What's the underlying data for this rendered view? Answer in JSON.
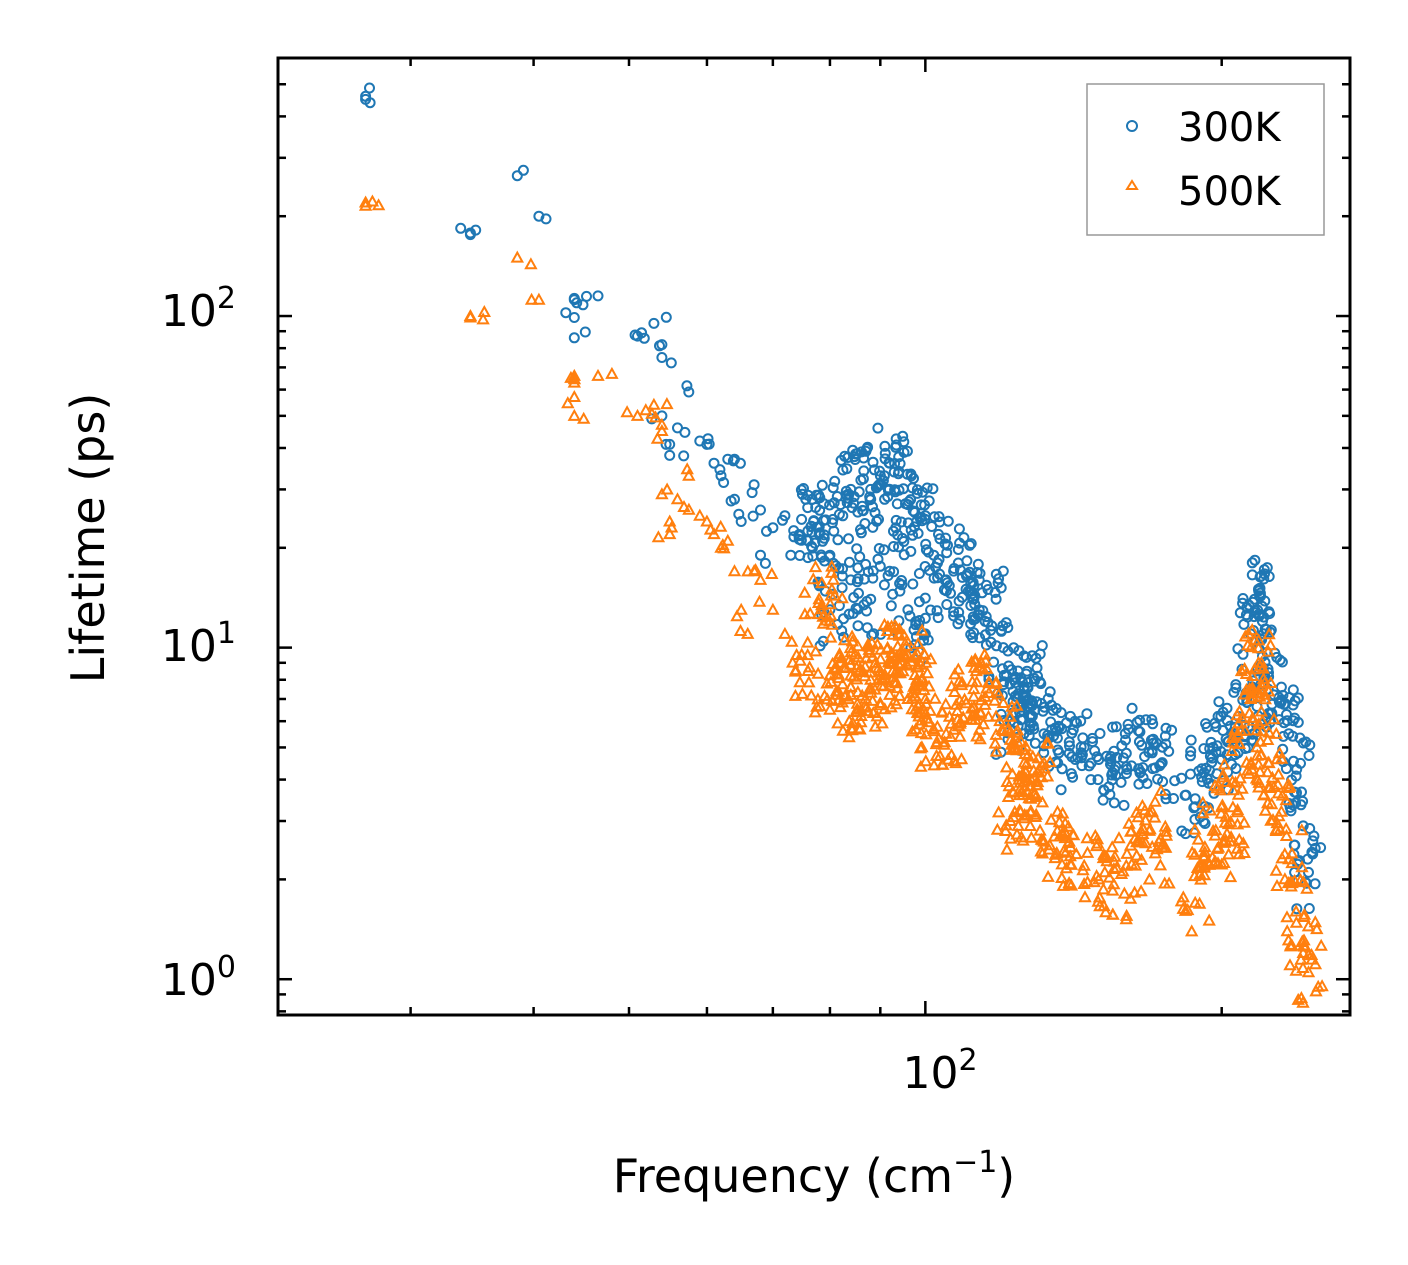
{
  "chart_data": {
    "type": "scatter",
    "x_scale": "log",
    "y_scale": "log",
    "xlim": [
      22,
      270
    ],
    "ylim": [
      0.78,
      600
    ],
    "xlabel": "Frequency (cm",
    "xlabel_sup": "−1",
    "xlabel_close": ")",
    "ylabel": "Lifetime (ps)",
    "x_tick_labels": [
      {
        "base": "10",
        "exp": "2",
        "value": 100
      }
    ],
    "y_tick_labels": [
      {
        "base": "10",
        "exp": "0",
        "value": 1
      },
      {
        "base": "10",
        "exp": "1",
        "value": 10
      },
      {
        "base": "10",
        "exp": "2",
        "value": 100
      }
    ],
    "legend_position": "top-right",
    "series": [
      {
        "name": "300K",
        "marker": "circle",
        "color": "#1f77b4",
        "anchor_points": [
          [
            27,
            450
          ],
          [
            27,
            460
          ],
          [
            34.5,
            178
          ],
          [
            34.5,
            176
          ],
          [
            38.5,
            265
          ],
          [
            40.5,
            200
          ],
          [
            44,
            112
          ],
          [
            44,
            113
          ],
          [
            44,
            99
          ],
          [
            44,
            86
          ],
          [
            46.5,
            115
          ],
          [
            51,
            87
          ],
          [
            51.5,
            89
          ],
          [
            53,
            95
          ],
          [
            54,
            82
          ],
          [
            54,
            75
          ],
          [
            54,
            50
          ],
          [
            55,
            41
          ],
          [
            55,
            38
          ],
          [
            56,
            46
          ],
          [
            57.5,
            59
          ],
          [
            59,
            42
          ],
          [
            60,
            41
          ],
          [
            61,
            36
          ],
          [
            62,
            33
          ],
          [
            63,
            37
          ],
          [
            64,
            37
          ],
          [
            64,
            28
          ],
          [
            65,
            24
          ],
          [
            67,
            31
          ],
          [
            68,
            26
          ],
          [
            68,
            19
          ],
          [
            70,
            23
          ],
          [
            72,
            25
          ],
          [
            73,
            19
          ],
          [
            75,
            29
          ],
          [
            76,
            21
          ],
          [
            77,
            24
          ],
          [
            78,
            22
          ],
          [
            80,
            19
          ],
          [
            82,
            27
          ],
          [
            84,
            30
          ],
          [
            86,
            32
          ],
          [
            88,
            28
          ],
          [
            90,
            31
          ],
          [
            92,
            36
          ],
          [
            94,
            34
          ],
          [
            96,
            27
          ],
          [
            98,
            24
          ],
          [
            100,
            25
          ],
          [
            80,
            13
          ],
          [
            84,
            16
          ],
          [
            88,
            14
          ],
          [
            92,
            17
          ],
          [
            96,
            13
          ],
          [
            100,
            11
          ],
          [
            102,
            19
          ],
          [
            105,
            16
          ],
          [
            108,
            18
          ],
          [
            110,
            15
          ],
          [
            112,
            14
          ],
          [
            115,
            12
          ],
          [
            118,
            14
          ],
          [
            120,
            10
          ],
          [
            123,
            8
          ],
          [
            126,
            7.5
          ],
          [
            130,
            8.2
          ],
          [
            122,
            6
          ],
          [
            125,
            6.8
          ],
          [
            128,
            6.2
          ],
          [
            132,
            5.5
          ],
          [
            136,
            5.6
          ],
          [
            140,
            4.8
          ],
          [
            145,
            5
          ],
          [
            150,
            4.6
          ],
          [
            155,
            4.2
          ],
          [
            160,
            4.8
          ],
          [
            165,
            5.2
          ],
          [
            170,
            4.9
          ],
          [
            174,
            4.5
          ],
          [
            188,
            3.5
          ],
          [
            192,
            4.2
          ],
          [
            196,
            5
          ],
          [
            200,
            4.6
          ],
          [
            204,
            5.8
          ],
          [
            208,
            6.2
          ],
          [
            212,
            7
          ],
          [
            214,
            11
          ],
          [
            216,
            14
          ],
          [
            218,
            15
          ],
          [
            220,
            12
          ],
          [
            223,
            7.5
          ],
          [
            226,
            7.2
          ],
          [
            230,
            7.6
          ],
          [
            234,
            5.5
          ],
          [
            238,
            4.1
          ],
          [
            242,
            2.9
          ],
          [
            245,
            2.1
          ]
        ]
      },
      {
        "name": "500K",
        "marker": "triangle",
        "color": "#ff7f0e",
        "anchor_points": [
          [
            27,
            220
          ],
          [
            27,
            215
          ],
          [
            34.5,
            100
          ],
          [
            34.5,
            99
          ],
          [
            38.5,
            150
          ],
          [
            40.5,
            112
          ],
          [
            44,
            66
          ],
          [
            44,
            63
          ],
          [
            44,
            57
          ],
          [
            44,
            50
          ],
          [
            46.5,
            66
          ],
          [
            51,
            50
          ],
          [
            52,
            52
          ],
          [
            53,
            54
          ],
          [
            54,
            47
          ],
          [
            54,
            45
          ],
          [
            54,
            29
          ],
          [
            55,
            24
          ],
          [
            55,
            22
          ],
          [
            56,
            28
          ],
          [
            57.5,
            33
          ],
          [
            59,
            25
          ],
          [
            60,
            24
          ],
          [
            61,
            22
          ],
          [
            62,
            20
          ],
          [
            63,
            21
          ],
          [
            64,
            17
          ],
          [
            65,
            13
          ],
          [
            66,
            11
          ],
          [
            67,
            17
          ],
          [
            68,
            16
          ],
          [
            70,
            13
          ],
          [
            72,
            11
          ],
          [
            74,
            9.5
          ],
          [
            76,
            8.5
          ],
          [
            78,
            14
          ],
          [
            80,
            12
          ],
          [
            82,
            9
          ],
          [
            84,
            7.2
          ],
          [
            86,
            6.5
          ],
          [
            88,
            7.5
          ],
          [
            90,
            8.5
          ],
          [
            92,
            9
          ],
          [
            94,
            11
          ],
          [
            96,
            9.5
          ],
          [
            98,
            8
          ],
          [
            100,
            7
          ],
          [
            80,
            6.5
          ],
          [
            84,
            7.6
          ],
          [
            88,
            8
          ],
          [
            92,
            7.2
          ],
          [
            96,
            7
          ],
          [
            100,
            6.3
          ],
          [
            102,
            5.6
          ],
          [
            105,
            5.5
          ],
          [
            108,
            5.8
          ],
          [
            110,
            6.8
          ],
          [
            112,
            7.5
          ],
          [
            115,
            7.1
          ],
          [
            118,
            6.2
          ],
          [
            120,
            5.6
          ],
          [
            123,
            5
          ],
          [
            126,
            4.5
          ],
          [
            130,
            4.2
          ],
          [
            122,
            3
          ],
          [
            125,
            3.2
          ],
          [
            128,
            3.5
          ],
          [
            132,
            2.6
          ],
          [
            136,
            2.4
          ],
          [
            140,
            2.6
          ],
          [
            145,
            2.2
          ],
          [
            150,
            2
          ],
          [
            155,
            1.85
          ],
          [
            160,
            2.2
          ],
          [
            165,
            2.6
          ],
          [
            170,
            3.2
          ],
          [
            174,
            2.5
          ],
          [
            188,
            1.7
          ],
          [
            192,
            2.2
          ],
          [
            196,
            2.8
          ],
          [
            200,
            3.3
          ],
          [
            204,
            2.6
          ],
          [
            208,
            3.6
          ],
          [
            212,
            4.5
          ],
          [
            214,
            7
          ],
          [
            216,
            8.6
          ],
          [
            218,
            9
          ],
          [
            220,
            6
          ],
          [
            223,
            4.5
          ],
          [
            226,
            3.8
          ],
          [
            230,
            3.2
          ],
          [
            234,
            2.3
          ],
          [
            238,
            1.6
          ],
          [
            242,
            1.2
          ],
          [
            245,
            1.05
          ]
        ]
      }
    ]
  }
}
